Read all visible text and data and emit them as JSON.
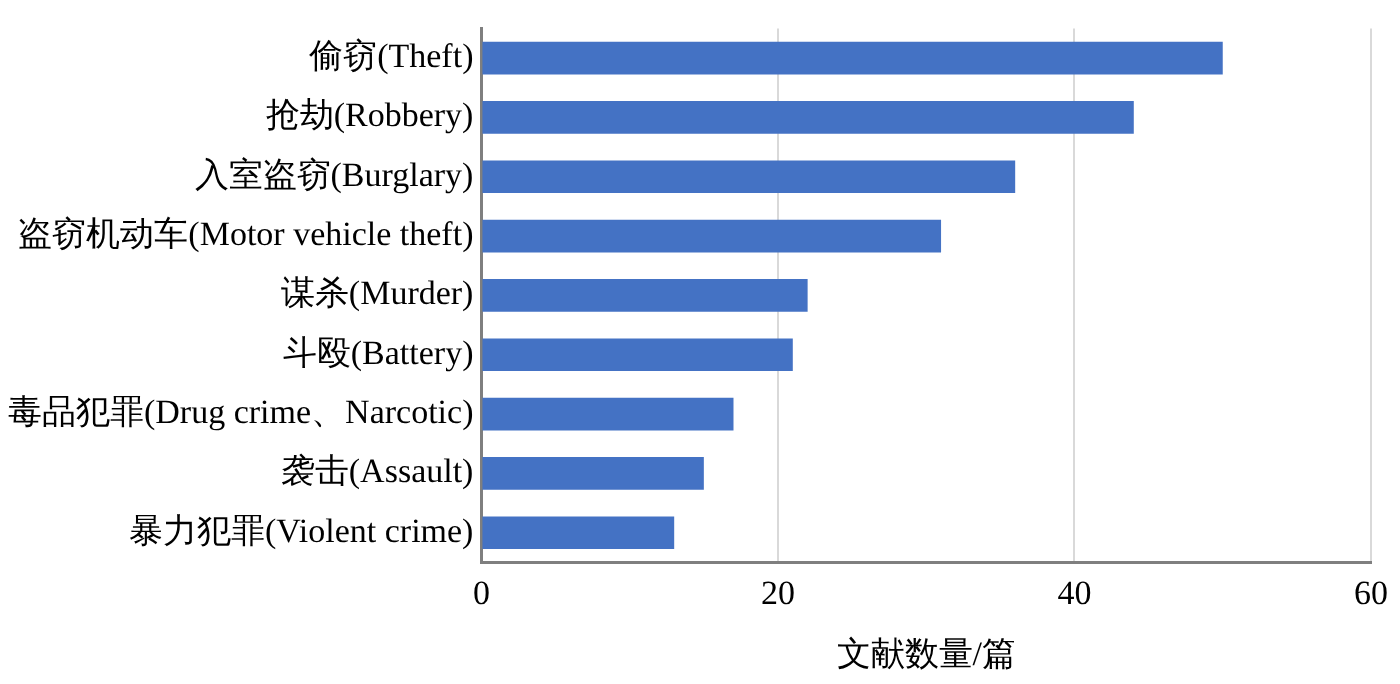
{
  "chart_data": {
    "type": "bar",
    "orientation": "horizontal",
    "xlabel": "文献数量/篇",
    "categories": [
      "偷窃(Theft)",
      "抢劫(Robbery)",
      "入室盗窃(Burglary)",
      "盗窃机动车(Motor vehicle theft)",
      "谋杀(Murder)",
      "斗殴(Battery)",
      "毒品犯罪(Drug crime、Narcotic)",
      "袭击(Assault)",
      "暴力犯罪(Violent crime)"
    ],
    "values": [
      50,
      44,
      36,
      31,
      22,
      21,
      17,
      15,
      13
    ],
    "color": "#4472c4",
    "xlim": [
      0,
      60
    ],
    "xticks": [
      0,
      20,
      40,
      60
    ],
    "grid": "x",
    "legend": false
  }
}
